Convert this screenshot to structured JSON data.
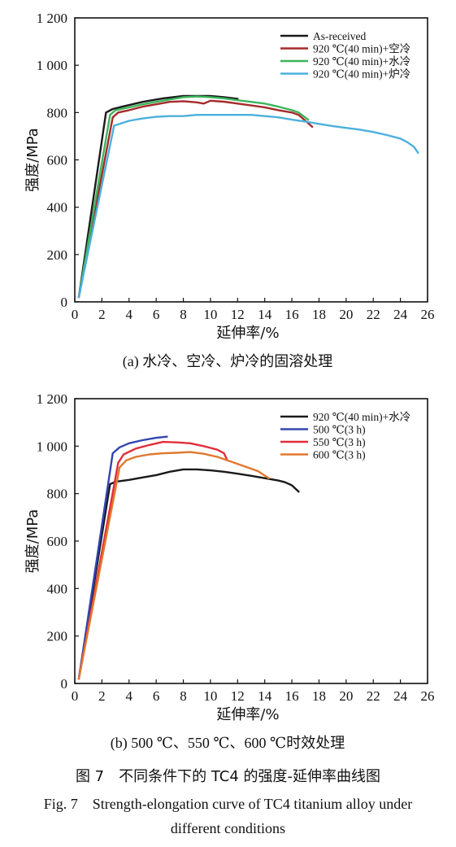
{
  "chart_data": [
    {
      "type": "line",
      "panel": "(a)",
      "caption": "(a) 水冷、空冷、炉冷的固溶处理",
      "xlabel": "延伸率/%",
      "ylabel": "强度/MPa",
      "xlim": [
        0,
        26
      ],
      "ylim": [
        0,
        1200
      ],
      "xticks": [
        0,
        2,
        4,
        6,
        8,
        10,
        12,
        14,
        16,
        18,
        20,
        22,
        24,
        26
      ],
      "yticks": [
        0,
        200,
        400,
        600,
        800,
        1000,
        1200
      ],
      "ytick_labels": [
        "0",
        "200",
        "400",
        "600",
        "800",
        "1 000",
        "1 200"
      ],
      "legend_position": "top-right",
      "grid": false,
      "series": [
        {
          "name": "As-received",
          "color": "#1a1a1a",
          "x": [
            0.3,
            2.3,
            2.8,
            3.5,
            5,
            6.5,
            8,
            9,
            10,
            11,
            12
          ],
          "y": [
            20,
            800,
            815,
            825,
            845,
            860,
            870,
            870,
            870,
            865,
            858
          ]
        },
        {
          "name": "920 ℃(40 min)+空冷",
          "color": "#a52a2a",
          "x": [
            0.3,
            2.8,
            3.2,
            4,
            5,
            6,
            7,
            8,
            9,
            9.5,
            10,
            11,
            12,
            13,
            14,
            15,
            16,
            16.5,
            17,
            17.5
          ],
          "y": [
            20,
            780,
            800,
            810,
            825,
            835,
            845,
            848,
            843,
            838,
            850,
            846,
            838,
            830,
            822,
            810,
            800,
            790,
            765,
            740
          ]
        },
        {
          "name": "920 ℃(40 min)+水冷",
          "color": "#3cb55a",
          "x": [
            0.3,
            2.6,
            3,
            4,
            5,
            6,
            7,
            8,
            9,
            10,
            11,
            12,
            13,
            14,
            15,
            16,
            16.5,
            17.2
          ],
          "y": [
            20,
            790,
            810,
            822,
            835,
            845,
            855,
            865,
            868,
            865,
            860,
            852,
            845,
            838,
            825,
            810,
            800,
            770
          ]
        },
        {
          "name": "920 ℃(40 min)+炉冷",
          "color": "#4cb0dc",
          "x": [
            0.3,
            2.9,
            3.2,
            4,
            5,
            6,
            7,
            8,
            9,
            10,
            11,
            12,
            13,
            14,
            15,
            16,
            17,
            18,
            19,
            20,
            21,
            22,
            23,
            24,
            24.5,
            25,
            25.3
          ],
          "y": [
            20,
            745,
            750,
            765,
            775,
            782,
            785,
            785,
            790,
            790,
            790,
            790,
            790,
            785,
            780,
            770,
            762,
            752,
            743,
            735,
            728,
            718,
            705,
            690,
            675,
            655,
            630
          ]
        }
      ]
    },
    {
      "type": "line",
      "panel": "(b)",
      "caption": "(b) 500 ℃、550 ℃、600 ℃时效处理",
      "xlabel": "延伸率/%",
      "ylabel": "强度/MPa",
      "xlim": [
        0,
        26
      ],
      "ylim": [
        0,
        1200
      ],
      "xticks": [
        0,
        2,
        4,
        6,
        8,
        10,
        12,
        14,
        16,
        18,
        20,
        22,
        24,
        26
      ],
      "yticks": [
        0,
        200,
        400,
        600,
        800,
        1000,
        1200
      ],
      "ytick_labels": [
        "0",
        "200",
        "400",
        "600",
        "800",
        "1 000",
        "1 200"
      ],
      "legend_position": "top-right",
      "grid": false,
      "series": [
        {
          "name": "920 ℃(40 min)+水冷",
          "color": "#1a1a1a",
          "x": [
            0.3,
            2.6,
            3,
            4,
            5,
            6,
            7,
            8,
            9,
            10,
            11,
            12,
            13,
            14,
            15,
            15.5,
            16,
            16.5
          ],
          "y": [
            20,
            840,
            850,
            858,
            868,
            878,
            892,
            902,
            902,
            898,
            892,
            884,
            875,
            865,
            855,
            848,
            835,
            808
          ]
        },
        {
          "name": "500 ℃(3 h)",
          "color": "#3246b0",
          "x": [
            0.3,
            2.8,
            3.3,
            4,
            5,
            6,
            6.8
          ],
          "y": [
            20,
            970,
            995,
            1012,
            1025,
            1035,
            1040
          ]
        },
        {
          "name": "550 ℃(3 h)",
          "color": "#e02e3a",
          "x": [
            0.3,
            3.2,
            3.6,
            4.5,
            5.5,
            6.5,
            7.5,
            8.5,
            9.5,
            10.5,
            11,
            11.2
          ],
          "y": [
            20,
            930,
            965,
            990,
            1005,
            1018,
            1016,
            1012,
            1000,
            985,
            970,
            945
          ]
        },
        {
          "name": "600 ℃(3 h)",
          "color": "#e0782e",
          "x": [
            0.3,
            3.3,
            3.8,
            4.5,
            5.5,
            6.5,
            7.5,
            8.5,
            9.5,
            10.5,
            11.5,
            12.5,
            13.5,
            14.3
          ],
          "y": [
            20,
            910,
            940,
            955,
            965,
            970,
            972,
            975,
            968,
            955,
            935,
            915,
            895,
            865
          ]
        }
      ]
    }
  ],
  "figure": {
    "caption_zh": "图 7　不同条件下的 TC4 的强度-延伸率曲线图",
    "caption_en_line1": "Fig. 7　Strength-elongation curve of TC4 titanium alloy under",
    "caption_en_line2": "different conditions"
  }
}
